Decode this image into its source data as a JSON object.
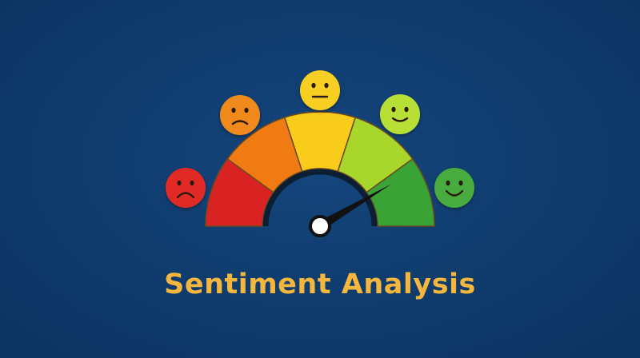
{
  "title": "Sentiment Analysis",
  "gauge": {
    "segments": [
      {
        "name": "very-negative",
        "color": "#d92323"
      },
      {
        "name": "negative",
        "color": "#f07b13"
      },
      {
        "name": "neutral",
        "color": "#f9cc1c"
      },
      {
        "name": "positive",
        "color": "#a8d62a"
      },
      {
        "name": "very-positive",
        "color": "#3aa335"
      }
    ],
    "needle_value": 0.83
  },
  "faces": [
    {
      "mood": "very-sad",
      "color": "#e12a25"
    },
    {
      "mood": "sad",
      "color": "#f08a1a"
    },
    {
      "mood": "neutral",
      "color": "#f7cf22"
    },
    {
      "mood": "happy",
      "color": "#b8df35"
    },
    {
      "mood": "very-happy",
      "color": "#46ab3c"
    }
  ],
  "colors": {
    "background": "#0f3a6b",
    "title": "#f4b63c"
  }
}
